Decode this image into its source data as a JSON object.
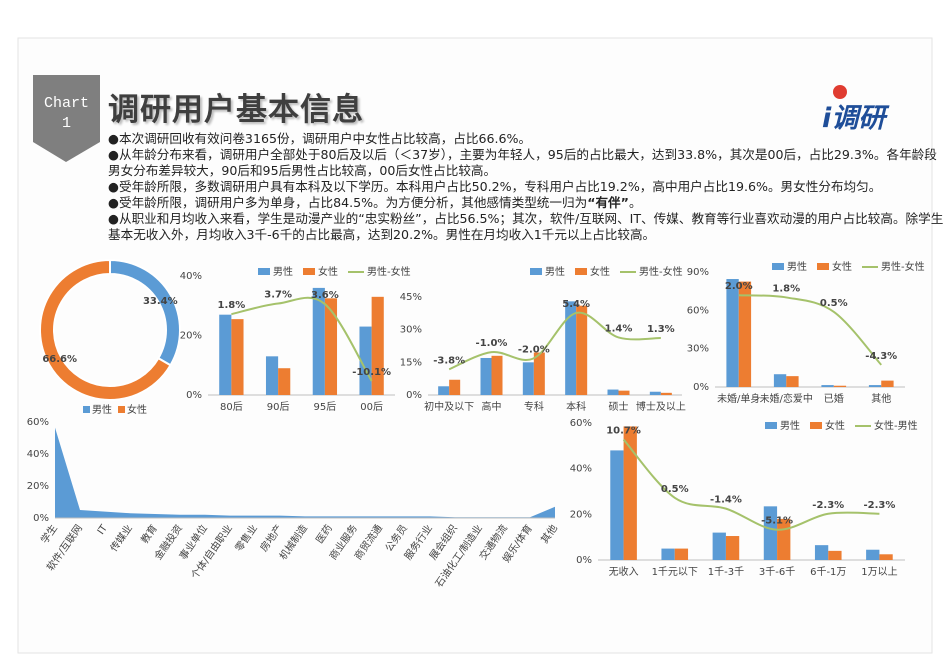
{
  "header": {
    "badge": [
      "Chart",
      "1"
    ],
    "title": "调研用户基本信息",
    "logo": "i调研"
  },
  "bullets": [
    [
      "●本次调研回收有效问卷3165份，调研用户中女性占比较高，占比66.6%。"
    ],
    [
      "●从年龄分布来看，调研用户全部处于80后及以后（＜37岁），主要为年轻人，95后的占比最大，达到33.8%，其次是00后，占比29.3%。各年龄段男女分布差异较大，90后和95后男性占比较高，00后女性占比较高。"
    ],
    [
      "●受年龄所限，多数调研用户具有本科及以下学历。本科用户占比50.2%，专科用户占比19.2%，高中用户占比19.6%。男女性分布均匀。"
    ],
    [
      "●受年龄所限，调研用户多为单身，占比84.5%。为方便分析，其他感情类型统一归为",
      "“有伴”",
      "。"
    ],
    [
      "●从职业和月均收入来看，学生是动漫产业的“忠实粉丝”，占比56.5%；其次，软件/互联网、IT、传媒、教育等行业喜欢动漫的用户占比较高。除学生基本无收入外，月均收入3千-6千的占比最高，达到20.2%。男性在月均收入1千元以上占比较高。"
    ]
  ],
  "chart_data": [
    {
      "type": "donut",
      "categories": [
        "男性",
        "女性"
      ],
      "values": [
        33.4,
        66.6
      ],
      "value_labels": [
        "33.4%",
        "66.6%"
      ],
      "colors": [
        "#5b9bd5",
        "#ed7d31"
      ]
    },
    {
      "type": "bar",
      "categories": [
        "80后",
        "90后",
        "95后",
        "00后"
      ],
      "series": [
        {
          "name": "男性",
          "color": "#5b9bd5",
          "values": [
            27,
            13,
            36,
            23
          ]
        },
        {
          "name": "女性",
          "color": "#ed7d31",
          "values": [
            25.5,
            9,
            32.5,
            33
          ]
        },
        {
          "name": "男性-女性",
          "color": "#a5c26b",
          "type": "line",
          "axis": "y2",
          "values": [
            1.8,
            3.7,
            3.6,
            -10.1
          ],
          "value_labels": [
            "1.8%",
            "3.7%",
            "3.6%",
            "-10.1%"
          ]
        }
      ],
      "ylim": [
        0,
        40
      ],
      "yticks": [
        {
          "value": 0,
          "label": "0%"
        },
        {
          "value": 20,
          "label": "20%"
        },
        {
          "value": 40,
          "label": "40%"
        }
      ],
      "y2lim": [
        -12.6,
        8.6
      ],
      "grid": false
    },
    {
      "type": "bar",
      "categories": [
        "初中及以下",
        "高中",
        "专科",
        "本科",
        "硕士",
        "博士及以上"
      ],
      "series": [
        {
          "name": "男性",
          "color": "#5b9bd5",
          "values": [
            4,
            17,
            15,
            43,
            2.5,
            1.5
          ]
        },
        {
          "name": "女性",
          "color": "#ed7d31",
          "values": [
            7,
            18,
            19.5,
            41,
            2,
            1
          ]
        },
        {
          "name": "男性-女性",
          "color": "#a5c26b",
          "type": "line",
          "axis": "y2",
          "values": [
            -3.8,
            -1.0,
            -2.0,
            5.4,
            1.4,
            1.3
          ],
          "value_labels": [
            "-3.8%",
            "-1.0%",
            "-2.0%",
            "5.4%",
            "1.4%",
            "1.3%"
          ]
        }
      ],
      "ylim": [
        0,
        45
      ],
      "yticks": [
        {
          "value": 0,
          "label": "0%"
        },
        {
          "value": 15,
          "label": "15%"
        },
        {
          "value": 30,
          "label": "30%"
        },
        {
          "value": 45,
          "label": "45%"
        }
      ],
      "y2lim": [
        -8,
        8
      ],
      "grid": false
    },
    {
      "type": "bar",
      "categories": [
        "未婚/单身",
        "未婚/恋爱中",
        "已婚",
        "其他"
      ],
      "series": [
        {
          "name": "男性",
          "color": "#5b9bd5",
          "values": [
            84.5,
            10,
            1.5,
            1.5
          ]
        },
        {
          "name": "女性",
          "color": "#ed7d31",
          "values": [
            82.5,
            8.5,
            1,
            5
          ]
        },
        {
          "name": "男性-女性",
          "color": "#a5c26b",
          "type": "line",
          "axis": "y2",
          "values": [
            2.0,
            1.8,
            0.5,
            -4.3
          ],
          "value_labels": [
            "2.0%",
            "1.8%",
            "0.5%",
            "-4.3%"
          ]
        }
      ],
      "ylim": [
        0,
        90
      ],
      "yticks": [
        {
          "value": 0,
          "label": "0%"
        },
        {
          "value": 30,
          "label": "30%"
        },
        {
          "value": 60,
          "label": "60%"
        },
        {
          "value": 90,
          "label": "90%"
        }
      ],
      "y2lim": [
        -6.3,
        4.1
      ],
      "grid": false
    },
    {
      "type": "area",
      "categories": [
        "学生",
        "软件/互联网",
        "IT",
        "传媒业",
        "教育",
        "金融投资",
        "事业单位",
        "个体/自由职业",
        "零售业",
        "房地产",
        "机械制造",
        "医药",
        "商业服务",
        "商贸流通",
        "公务员",
        "服务行业",
        "展会组织",
        "石油化工/制造业",
        "交通物流",
        "娱乐/体育",
        "其他"
      ],
      "values": [
        56.5,
        5,
        4,
        3,
        2.5,
        2,
        2,
        1.5,
        1.5,
        1.5,
        1,
        1,
        1,
        1,
        1,
        1,
        0.5,
        0.5,
        0.5,
        0.5,
        7
      ],
      "color": "#5b9bd5",
      "ylim": [
        0,
        60
      ],
      "yticks": [
        {
          "value": 0,
          "label": "0%"
        },
        {
          "value": 20,
          "label": "20%"
        },
        {
          "value": 40,
          "label": "40%"
        },
        {
          "value": 60,
          "label": "60%"
        }
      ],
      "grid": false
    },
    {
      "type": "bar",
      "categories": [
        "无收入",
        "1千元以下",
        "1千-3千",
        "3千-6千",
        "6千-1万",
        "1万以上"
      ],
      "series": [
        {
          "name": "男性",
          "color": "#5b9bd5",
          "values": [
            48,
            5,
            12,
            23.5,
            6.5,
            4.5
          ]
        },
        {
          "name": "女性",
          "color": "#ed7d31",
          "values": [
            58.5,
            5,
            10.5,
            18,
            4,
            2.5
          ]
        },
        {
          "name": "女性-男性",
          "color": "#a5c26b",
          "type": "line",
          "axis": "y2",
          "values": [
            10.7,
            0.5,
            -1.4,
            -5.1,
            -2.3,
            -2.3
          ],
          "value_labels": [
            "10.7%",
            "0.5%",
            "-1.4%",
            "-5.1%",
            "-2.3%",
            "-2.3%"
          ]
        }
      ],
      "ylim": [
        0,
        60
      ],
      "yticks": [
        {
          "value": 0,
          "label": "0%"
        },
        {
          "value": 20,
          "label": "20%"
        },
        {
          "value": 40,
          "label": "40%"
        },
        {
          "value": 60,
          "label": "60%"
        }
      ],
      "y2lim": [
        -10.4,
        13.6
      ],
      "grid": false
    }
  ]
}
